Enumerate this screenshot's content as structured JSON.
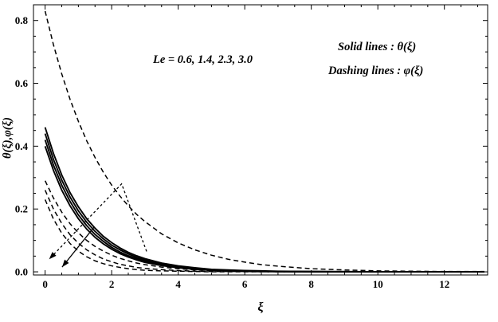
{
  "chart_data": {
    "type": "line",
    "title": "",
    "xlabel": "ξ",
    "ylabel": "θ(ξ),φ(ξ)",
    "xlim": [
      -0.35,
      13.3
    ],
    "ylim": [
      -0.01,
      0.85
    ],
    "xticks": [
      0,
      2,
      4,
      6,
      8,
      10,
      12
    ],
    "yticks": [
      0.0,
      0.2,
      0.4,
      0.6,
      0.8
    ],
    "x_minor_step": 0.5,
    "y_minor_step": 0.05,
    "grid": false,
    "legend_position": "top-right-inside",
    "le_values": [
      0.6,
      1.4,
      2.3,
      3.0
    ],
    "line_color": "#000000",
    "x": [
      0,
      0.25,
      0.5,
      0.75,
      1,
      1.25,
      1.5,
      1.75,
      2,
      2.25,
      2.5,
      2.75,
      3,
      3.5,
      4,
      4.5,
      5,
      5.5,
      6,
      6.5,
      7,
      8,
      9,
      10,
      11,
      12,
      13.2
    ],
    "series": [
      {
        "name": "theta-Le-0.6",
        "label": "θ(ξ), Le=0.6",
        "style": "solid",
        "values": [
          0.46,
          0.377,
          0.308,
          0.252,
          0.207,
          0.169,
          0.139,
          0.113,
          0.093,
          0.076,
          0.062,
          0.051,
          0.042,
          0.028,
          0.019,
          0.013,
          0.008,
          0.006,
          0.004,
          0.003,
          0.002,
          0.001,
          0.001,
          0,
          0,
          0,
          0
        ]
      },
      {
        "name": "theta-Le-1.4",
        "label": "θ(ξ), Le=1.4",
        "style": "solid",
        "values": [
          0.44,
          0.358,
          0.292,
          0.238,
          0.194,
          0.158,
          0.129,
          0.105,
          0.085,
          0.07,
          0.057,
          0.046,
          0.038,
          0.025,
          0.017,
          0.011,
          0.007,
          0.005,
          0.003,
          0.002,
          0.001,
          0.001,
          0,
          0,
          0,
          0,
          0
        ]
      },
      {
        "name": "theta-Le-2.3",
        "label": "θ(ξ), Le=2.3",
        "style": "solid",
        "values": [
          0.42,
          0.34,
          0.276,
          0.224,
          0.181,
          0.147,
          0.119,
          0.097,
          0.078,
          0.063,
          0.051,
          0.042,
          0.034,
          0.022,
          0.015,
          0.01,
          0.006,
          0.004,
          0.003,
          0.002,
          0.001,
          0.001,
          0,
          0,
          0,
          0,
          0
        ]
      },
      {
        "name": "theta-Le-3.0",
        "label": "θ(ξ), Le=3.0",
        "style": "solid",
        "values": [
          0.4,
          0.323,
          0.26,
          0.21,
          0.169,
          0.136,
          0.11,
          0.089,
          0.072,
          0.058,
          0.047,
          0.038,
          0.03,
          0.02,
          0.013,
          0.008,
          0.005,
          0.004,
          0.002,
          0.002,
          0.001,
          0,
          0,
          0,
          0,
          0,
          0
        ]
      },
      {
        "name": "phi-Le-0.6",
        "label": "φ(ξ), Le=0.6",
        "style": "dashed",
        "values": [
          0.83,
          0.723,
          0.63,
          0.549,
          0.479,
          0.417,
          0.364,
          0.317,
          0.276,
          0.241,
          0.21,
          0.183,
          0.16,
          0.121,
          0.092,
          0.07,
          0.053,
          0.04,
          0.031,
          0.023,
          0.018,
          0.01,
          0.006,
          0.003,
          0.002,
          0.001,
          0.001
        ]
      },
      {
        "name": "phi-Le-1.4",
        "label": "φ(ξ), Le=1.4",
        "style": "dashed",
        "values": [
          0.29,
          0.235,
          0.19,
          0.153,
          0.124,
          0.1,
          0.081,
          0.066,
          0.053,
          0.043,
          0.035,
          0.028,
          0.023,
          0.015,
          0.01,
          0.006,
          0.004,
          0.003,
          0.002,
          0.001,
          0.001,
          0,
          0,
          0,
          0,
          0,
          0
        ]
      },
      {
        "name": "phi-Le-2.3",
        "label": "φ(ξ), Le=2.3",
        "style": "dashed",
        "values": [
          0.26,
          0.2,
          0.154,
          0.118,
          0.091,
          0.07,
          0.054,
          0.041,
          0.032,
          0.024,
          0.019,
          0.014,
          0.011,
          0.007,
          0.004,
          0.002,
          0.001,
          0.001,
          0.001,
          0,
          0,
          0,
          0,
          0,
          0,
          0,
          0
        ]
      },
      {
        "name": "phi-Le-3.0",
        "label": "φ(ξ), Le=3.0",
        "style": "dashed",
        "values": [
          0.23,
          0.168,
          0.123,
          0.09,
          0.066,
          0.048,
          0.035,
          0.026,
          0.019,
          0.014,
          0.01,
          0.007,
          0.005,
          0.003,
          0.002,
          0.001,
          0,
          0,
          0,
          0,
          0,
          0,
          0,
          0,
          0,
          0,
          0
        ]
      }
    ],
    "annotations": [
      {
        "name": "le-values",
        "text": "Le = 0.6, 1.4, 2.3, 3.0"
      },
      {
        "name": "legend-solid",
        "text": "Solid lines : θ(ξ)"
      },
      {
        "name": "legend-dashed",
        "text": "Dashing lines : φ(ξ)"
      }
    ],
    "arrows": [
      {
        "name": "dashed-arrow",
        "style": "dashed",
        "points": [
          [
            3.05,
            0.065
          ],
          [
            2.3,
            0.28
          ],
          [
            0.12,
            0.04
          ]
        ]
      },
      {
        "name": "solid-arrow",
        "style": "solid",
        "points": [
          [
            1.47,
            0.142
          ],
          [
            0.51,
            0.015
          ]
        ]
      }
    ]
  }
}
